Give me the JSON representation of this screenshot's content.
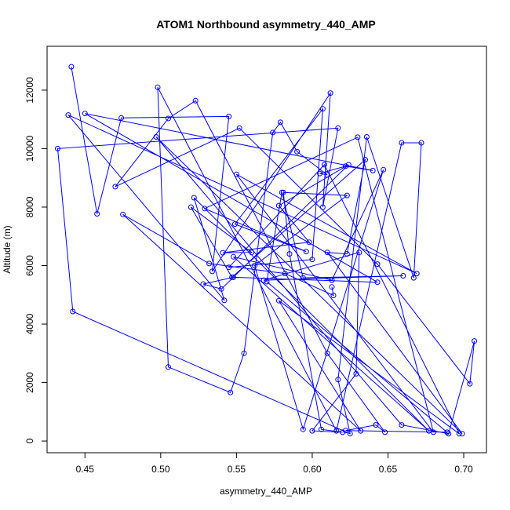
{
  "chart_data": {
    "type": "line",
    "title": "ATOM1 Northbound asymmetry_440_AMP",
    "xlabel": "asymmetry_440_AMP",
    "ylabel": "Altitude (m)",
    "xlim": [
      0.425,
      0.715
    ],
    "ylim": [
      -400,
      13500
    ],
    "xticks": [
      0.45,
      0.5,
      0.55,
      0.6,
      0.65,
      0.7
    ],
    "xtick_labels": [
      "0.45",
      "0.50",
      "0.55",
      "0.60",
      "0.65",
      "0.70"
    ],
    "yticks": [
      0,
      2000,
      4000,
      6000,
      8000,
      10000,
      12000
    ],
    "yticks_labels": [
      "0",
      "2000",
      "4000",
      "6000",
      "8000",
      "10000",
      "12000"
    ],
    "grid": false,
    "series": [
      {
        "color": "#0000ff",
        "marker": "open-circle",
        "x": [
          0.441,
          0.458,
          0.474,
          0.545,
          0.534,
          0.612,
          0.607,
          0.617,
          0.432,
          0.442,
          0.625,
          0.617,
          0.636,
          0.667,
          0.672,
          0.659,
          0.616,
          0.498,
          0.505,
          0.546,
          0.555,
          0.574,
          0.579,
          0.59,
          0.61,
          0.605,
          0.622,
          0.64,
          0.45,
          0.643,
          0.548,
          0.528,
          0.54,
          0.624,
          0.578,
          0.598,
          0.541,
          0.56,
          0.52,
          0.547,
          0.635,
          0.623,
          0.61,
          0.699,
          0.497,
          0.659,
          0.69,
          0.707,
          0.704,
          0.643,
          0.552,
          0.47,
          0.505,
          0.523,
          0.61,
          0.648,
          0.642,
          0.622,
          0.689,
          0.57,
          0.58,
          0.594,
          0.66,
          0.568,
          0.631,
          0.629,
          0.6,
          0.62,
          0.606,
          0.585,
          0.581,
          0.623,
          0.562,
          0.594,
          0.647,
          0.613,
          0.548,
          0.677,
          0.522,
          0.542,
          0.439,
          0.669,
          0.55,
          0.68,
          0.63,
          0.529,
          0.596,
          0.549,
          0.607,
          0.6,
          0.545,
          0.608,
          0.697,
          0.578,
          0.632,
          0.475,
          0.532,
          0.582,
          0.614,
          0.613
        ],
        "y": [
          12800,
          7770,
          11050,
          11100,
          5800,
          11900,
          8000,
          10700,
          10000,
          4430,
          250,
          2100,
          10400,
          5580,
          10200,
          10200,
          350,
          12100,
          2530,
          1660,
          3000,
          10550,
          10900,
          9900,
          9100,
          9150,
          9400,
          9250,
          11200,
          5430,
          5600,
          5370,
          5200,
          9450,
          8050,
          6800,
          6440,
          6450,
          8000,
          5600,
          9620,
          6400,
          6450,
          250,
          10400,
          550,
          250,
          3420,
          1960,
          6050,
          10700,
          8700,
          11030,
          11640,
          3000,
          300,
          550,
          360,
          300,
          5450,
          8500,
          5580,
          5650,
          5500,
          6450,
          2300,
          350,
          300,
          400,
          6400,
          8500,
          8400,
          6000,
          400,
          9280,
          5500,
          6300,
          350,
          8320,
          4810,
          11150,
          5730,
          9120,
          300,
          10390,
          7950,
          6480,
          7420,
          11360,
          6210,
          5940,
          9450,
          250,
          4800,
          350,
          7750,
          6070,
          5730,
          4980,
          5270
        ]
      }
    ]
  }
}
